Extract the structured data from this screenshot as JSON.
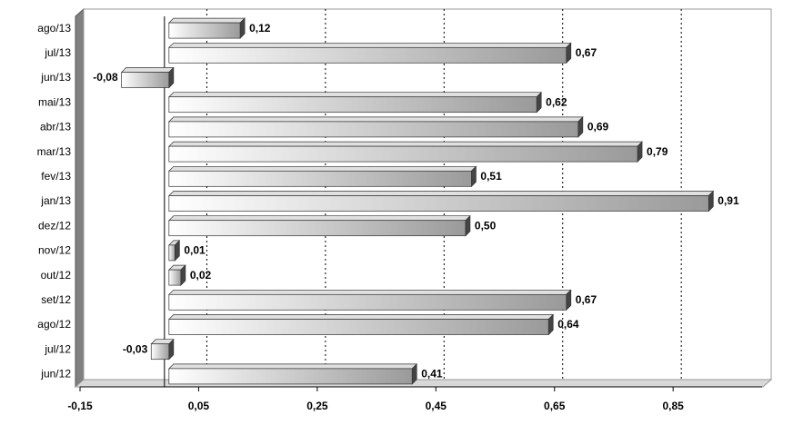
{
  "chart_data": {
    "type": "hbar",
    "categories": [
      "ago/13",
      "jul/13",
      "jun/13",
      "mai/13",
      "abr/13",
      "mar/13",
      "fev/13",
      "jan/13",
      "dez/12",
      "nov/12",
      "out/12",
      "set/12",
      "ago/12",
      "jul/12",
      "jun/12"
    ],
    "values": [
      0.12,
      0.67,
      -0.08,
      0.62,
      0.69,
      0.79,
      0.51,
      0.91,
      0.5,
      0.01,
      0.02,
      0.67,
      0.64,
      -0.03,
      0.41
    ],
    "value_labels": [
      "0,12",
      "0,67",
      "-0,08",
      "0,62",
      "0,69",
      "0,79",
      "0,51",
      "0,91",
      "0,50",
      "0,01",
      "0,02",
      "0,67",
      "0,64",
      "-0,03",
      "0,41"
    ],
    "color": "#b8b8b8",
    "xlim": [
      -0.15,
      1.0
    ],
    "xticks": [
      {
        "value": -0.15,
        "label": "-0,15"
      },
      {
        "value": 0.05,
        "label": "0,05"
      },
      {
        "value": 0.25,
        "label": "0,25"
      },
      {
        "value": 0.45,
        "label": "0,45"
      },
      {
        "value": 0.65,
        "label": "0,65"
      },
      {
        "value": 0.85,
        "label": "0,85"
      }
    ],
    "grid": true
  }
}
